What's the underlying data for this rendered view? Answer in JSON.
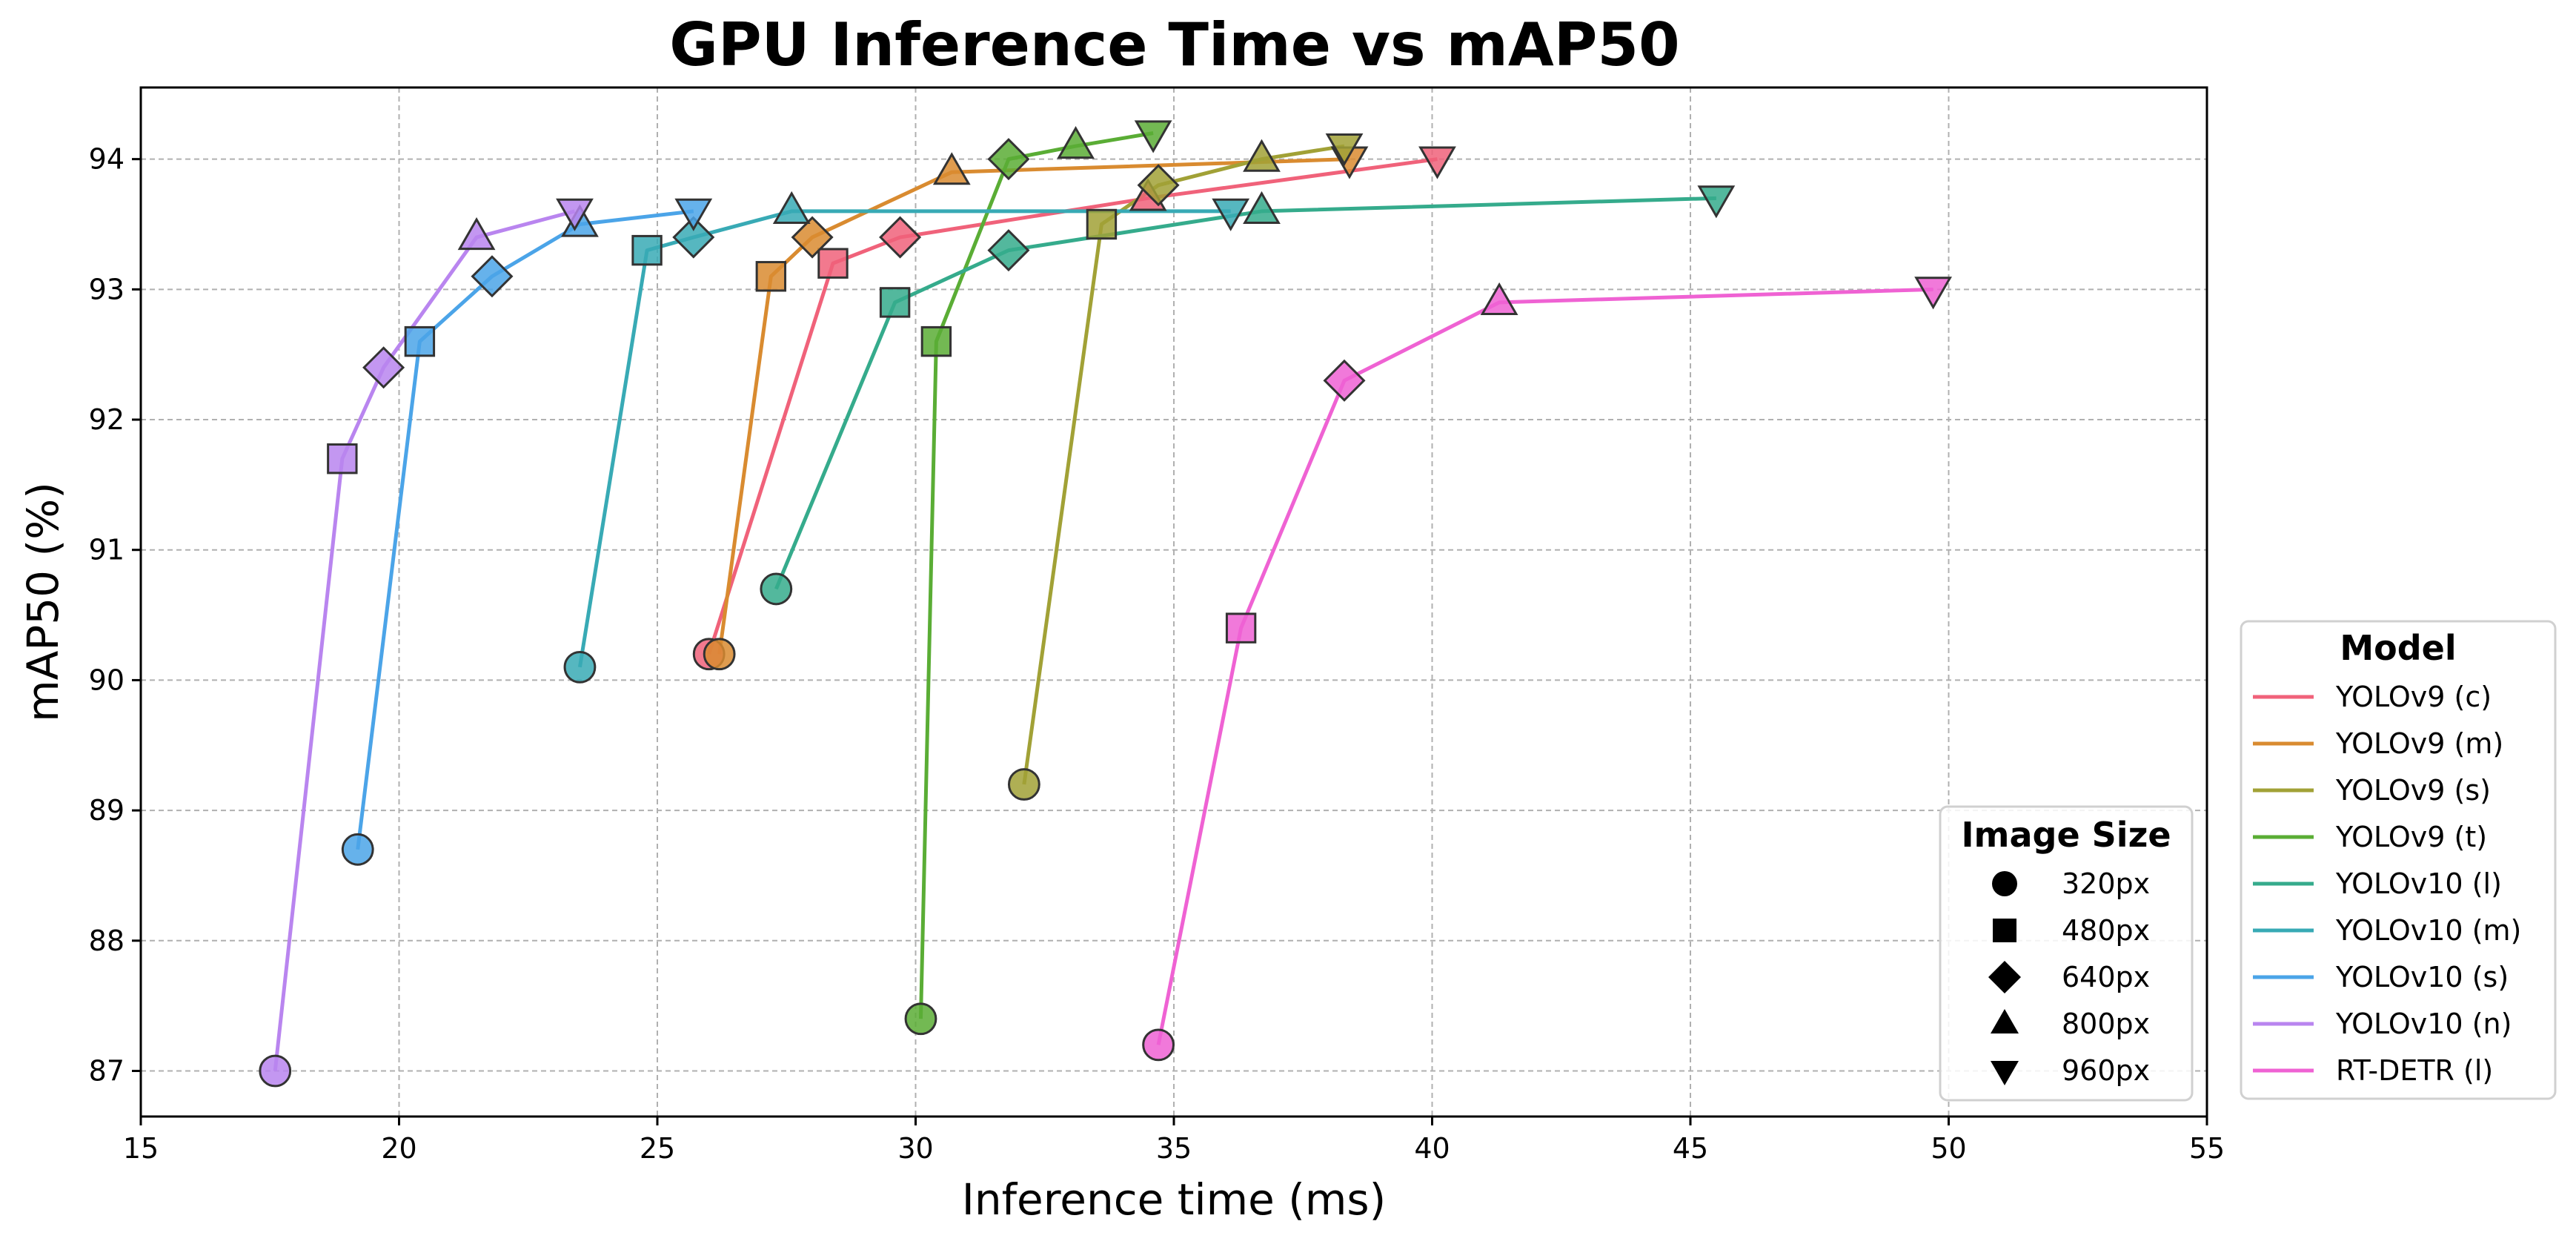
{
  "chart_data": {
    "type": "line",
    "title": "GPU Inference Time vs mAP50",
    "xlabel": "Inference time (ms)",
    "ylabel": "mAP50 (%)",
    "xlim": [
      15,
      55
    ],
    "ylim": [
      86.65,
      94.55
    ],
    "xticks": [
      15,
      20,
      25,
      30,
      35,
      40,
      45,
      50,
      55
    ],
    "yticks": [
      87,
      88,
      89,
      90,
      91,
      92,
      93,
      94
    ],
    "grid": true,
    "image_sizes": [
      "320px",
      "480px",
      "640px",
      "800px",
      "960px"
    ],
    "marker_shapes": [
      "circle",
      "square",
      "diamond",
      "triangle-up",
      "triangle-down"
    ],
    "series": [
      {
        "name": "YOLOv9 (c)",
        "color": "#f0627a",
        "x": [
          26.0,
          28.4,
          29.7,
          34.5,
          40.1
        ],
        "y": [
          90.2,
          93.2,
          93.4,
          93.7,
          94.0
        ]
      },
      {
        "name": "YOLOv9 (m)",
        "color": "#d98b30",
        "x": [
          26.2,
          27.2,
          28.0,
          30.7,
          38.4
        ],
        "y": [
          90.2,
          93.1,
          93.4,
          93.9,
          94.0
        ]
      },
      {
        "name": "YOLOv9 (s)",
        "color": "#a1a136",
        "x": [
          32.1,
          33.6,
          34.7,
          36.7,
          38.3
        ],
        "y": [
          89.2,
          93.5,
          93.8,
          94.0,
          94.1
        ]
      },
      {
        "name": "YOLOv9 (t)",
        "color": "#5aad35",
        "x": [
          30.1,
          30.4,
          31.8,
          33.1,
          34.6
        ],
        "y": [
          87.4,
          92.6,
          94.0,
          94.1,
          94.2
        ]
      },
      {
        "name": "YOLOv10 (l)",
        "color": "#35ab8c",
        "x": [
          27.3,
          29.6,
          31.8,
          36.7,
          45.5
        ],
        "y": [
          90.7,
          92.9,
          93.3,
          93.6,
          93.7
        ]
      },
      {
        "name": "YOLOv10 (m)",
        "color": "#38aab5",
        "x": [
          23.5,
          24.8,
          25.7,
          27.6,
          36.1
        ],
        "y": [
          90.1,
          93.3,
          93.4,
          93.6,
          93.6
        ]
      },
      {
        "name": "YOLOv10 (s)",
        "color": "#4ba4e8",
        "x": [
          19.2,
          20.4,
          21.8,
          23.5,
          25.7
        ],
        "y": [
          88.7,
          92.6,
          93.1,
          93.5,
          93.6
        ]
      },
      {
        "name": "YOLOv10 (n)",
        "color": "#b985ef",
        "x": [
          17.6,
          18.9,
          19.7,
          21.5,
          23.4
        ],
        "y": [
          87.0,
          91.7,
          92.4,
          93.4,
          93.6
        ]
      },
      {
        "name": "RT-DETR (l)",
        "color": "#ef62d3",
        "x": [
          34.7,
          36.3,
          38.3,
          41.3,
          49.7
        ],
        "y": [
          87.2,
          90.4,
          92.3,
          92.9,
          93.0
        ]
      }
    ],
    "legend_model": {
      "title": "Model",
      "position": "outside-right"
    },
    "legend_size": {
      "title": "Image Size",
      "position": "lower-right"
    }
  }
}
